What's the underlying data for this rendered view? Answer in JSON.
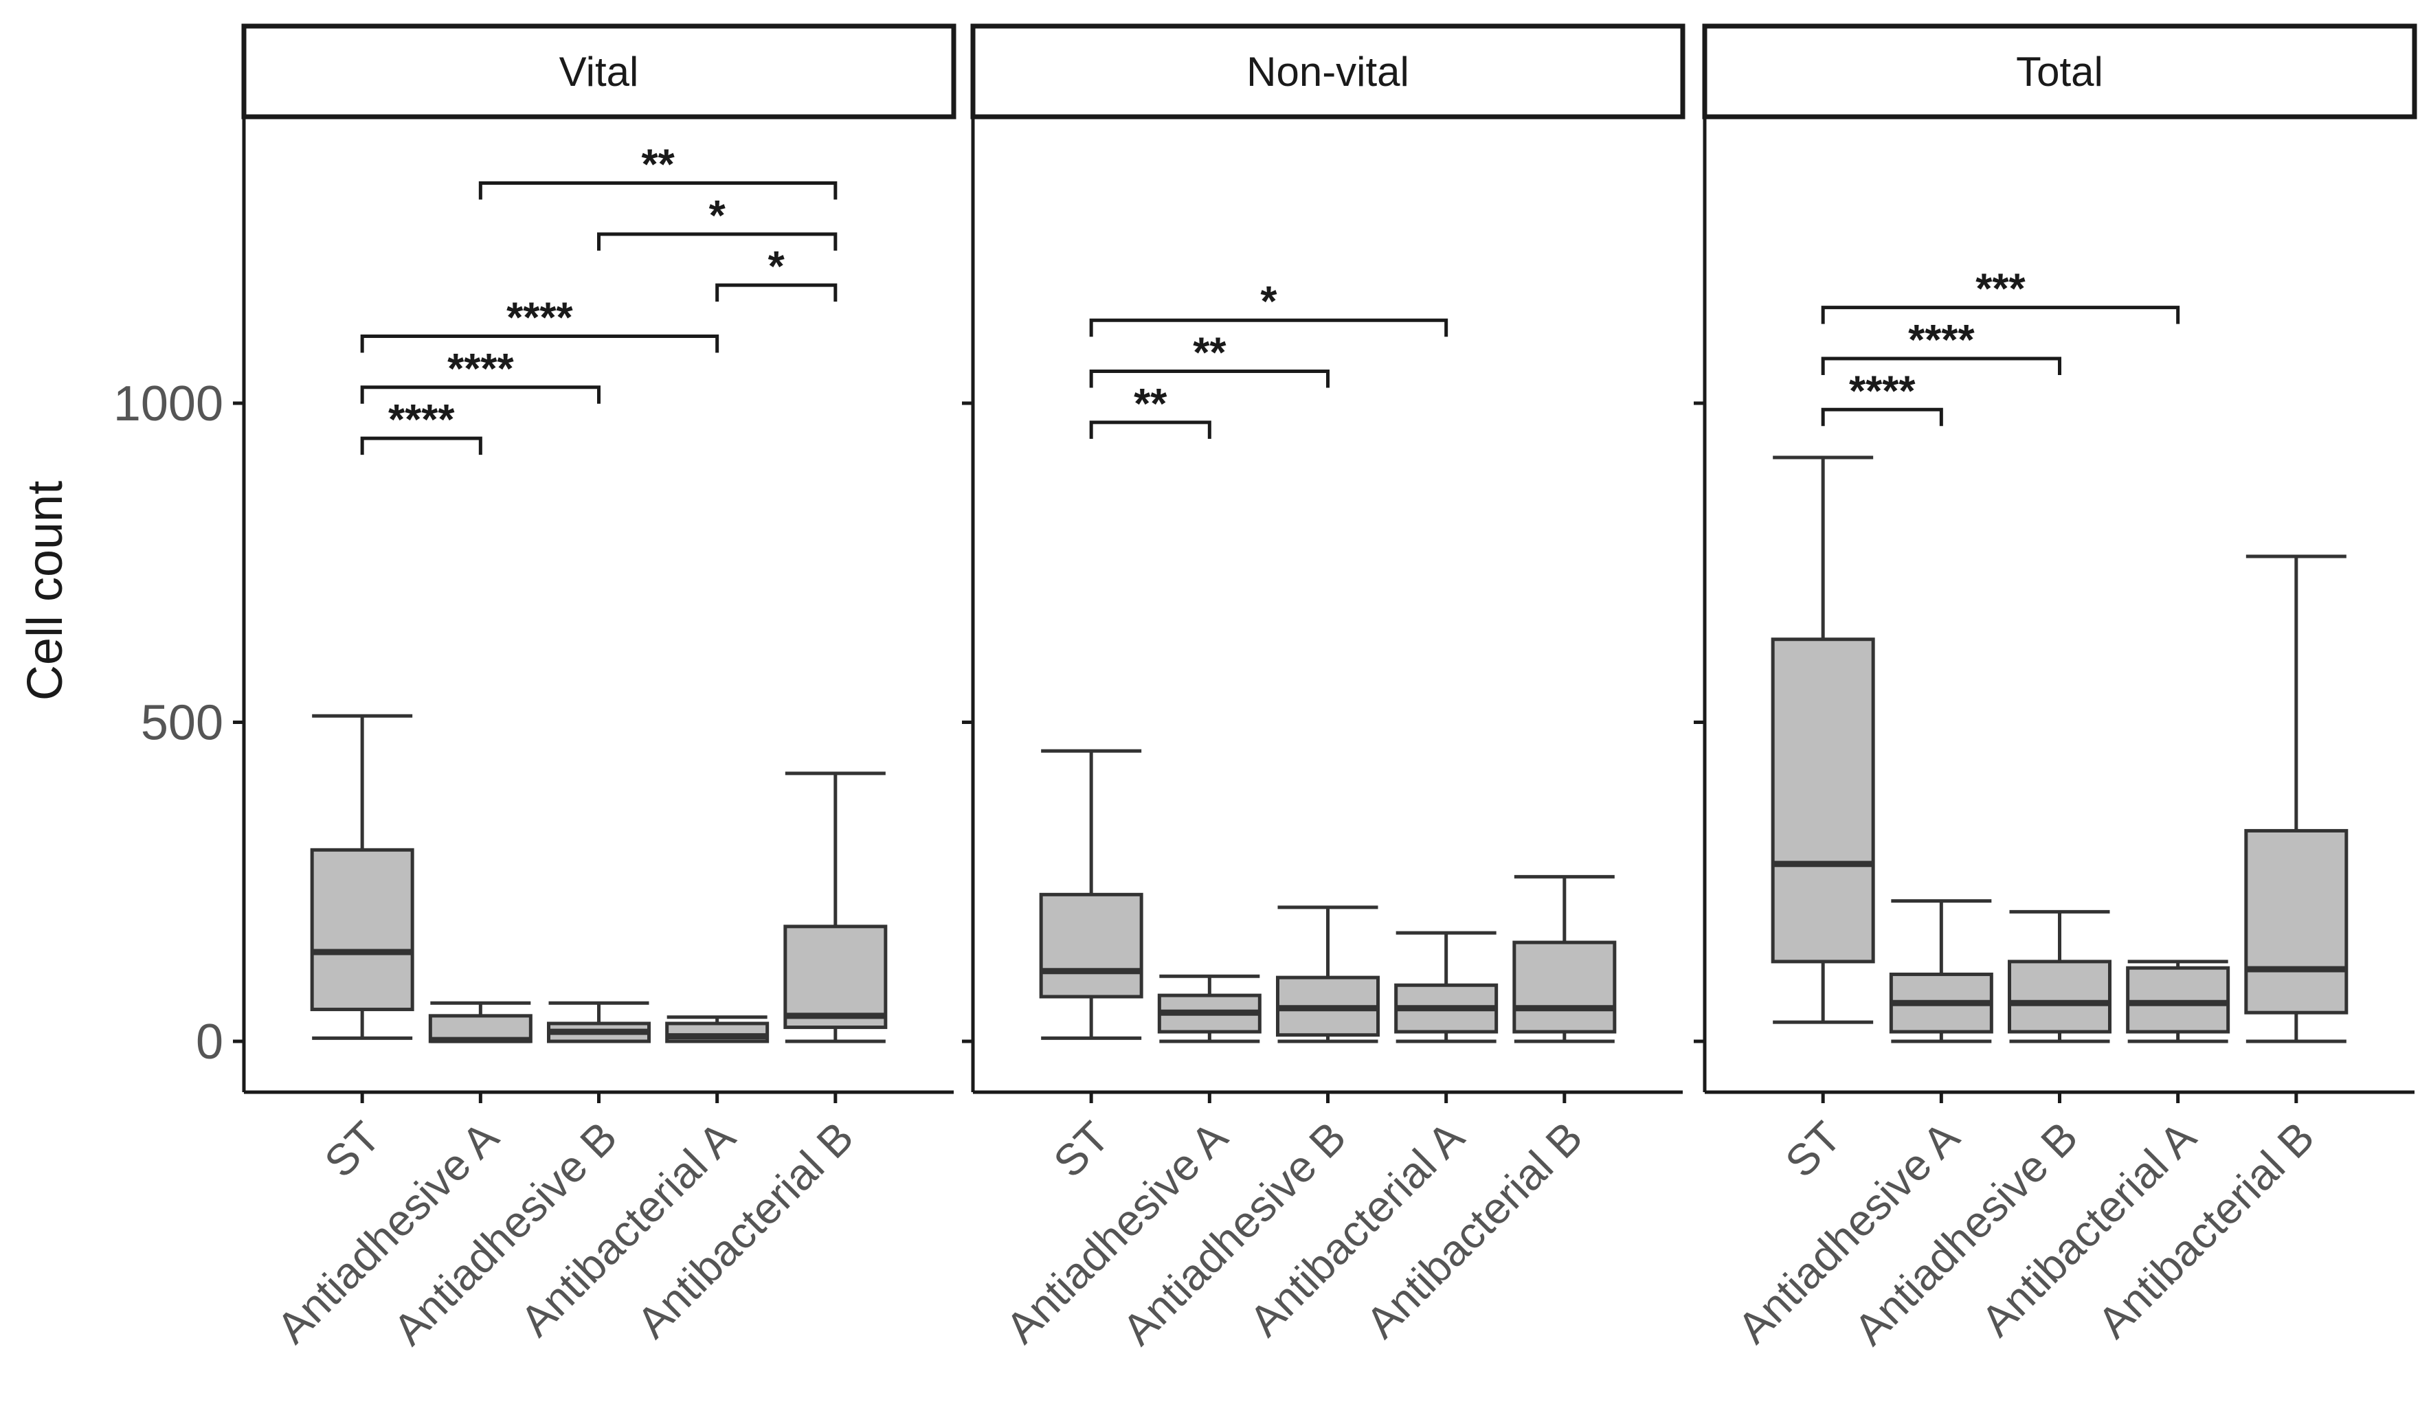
{
  "chart_data": {
    "type": "boxplot",
    "ylabel": "Cell count",
    "y_ticks": [
      0,
      500,
      1000
    ],
    "ylim": [
      -70,
      1450
    ],
    "categories": [
      "ST",
      "Antiadhesive A",
      "Antiadhesive B",
      "Antibacterial A",
      "Antibacterial B"
    ],
    "panels": [
      {
        "title": "Vital",
        "boxes": [
          {
            "min": 5,
            "q1": 50,
            "median": 140,
            "q3": 300,
            "max": 510
          },
          {
            "min": 0,
            "q1": 0,
            "median": 2,
            "q3": 40,
            "max": 60
          },
          {
            "min": 0,
            "q1": 0,
            "median": 15,
            "q3": 28,
            "max": 60
          },
          {
            "min": 0,
            "q1": 0,
            "median": 8,
            "q3": 28,
            "max": 38
          },
          {
            "min": 0,
            "q1": 22,
            "median": 40,
            "q3": 180,
            "max": 420
          }
        ],
        "comparisons": [
          {
            "from": 0,
            "to": 1,
            "label": "****",
            "y": 945
          },
          {
            "from": 0,
            "to": 2,
            "label": "****",
            "y": 1025
          },
          {
            "from": 0,
            "to": 3,
            "label": "****",
            "y": 1105
          },
          {
            "from": 3,
            "to": 4,
            "label": "*",
            "y": 1185
          },
          {
            "from": 2,
            "to": 4,
            "label": "*",
            "y": 1265
          },
          {
            "from": 1,
            "to": 4,
            "label": "**",
            "y": 1345
          }
        ]
      },
      {
        "title": "Non-vital",
        "boxes": [
          {
            "min": 5,
            "q1": 70,
            "median": 110,
            "q3": 230,
            "max": 455
          },
          {
            "min": 0,
            "q1": 15,
            "median": 45,
            "q3": 72,
            "max": 102
          },
          {
            "min": 0,
            "q1": 10,
            "median": 52,
            "q3": 100,
            "max": 210
          },
          {
            "min": 0,
            "q1": 15,
            "median": 52,
            "q3": 88,
            "max": 170
          },
          {
            "min": 0,
            "q1": 15,
            "median": 52,
            "q3": 155,
            "max": 258
          }
        ],
        "comparisons": [
          {
            "from": 0,
            "to": 1,
            "label": "**",
            "y": 970
          },
          {
            "from": 0,
            "to": 2,
            "label": "**",
            "y": 1050
          },
          {
            "from": 0,
            "to": 3,
            "label": "*",
            "y": 1130
          }
        ]
      },
      {
        "title": "Total",
        "boxes": [
          {
            "min": 30,
            "q1": 125,
            "median": 278,
            "q3": 630,
            "max": 915
          },
          {
            "min": 0,
            "q1": 15,
            "median": 60,
            "q3": 105,
            "max": 220
          },
          {
            "min": 0,
            "q1": 15,
            "median": 60,
            "q3": 125,
            "max": 203
          },
          {
            "min": 0,
            "q1": 15,
            "median": 60,
            "q3": 115,
            "max": 125
          },
          {
            "min": 0,
            "q1": 45,
            "median": 113,
            "q3": 330,
            "max": 760
          }
        ],
        "comparisons": [
          {
            "from": 0,
            "to": 1,
            "label": "****",
            "y": 990
          },
          {
            "from": 0,
            "to": 2,
            "label": "****",
            "y": 1070
          },
          {
            "from": 0,
            "to": 3,
            "label": "***",
            "y": 1150
          }
        ]
      }
    ]
  },
  "colors": {
    "box_fill": "#bebebe",
    "line": "#333333",
    "axis": "#1a1a1a",
    "tick_text": "#555555"
  }
}
